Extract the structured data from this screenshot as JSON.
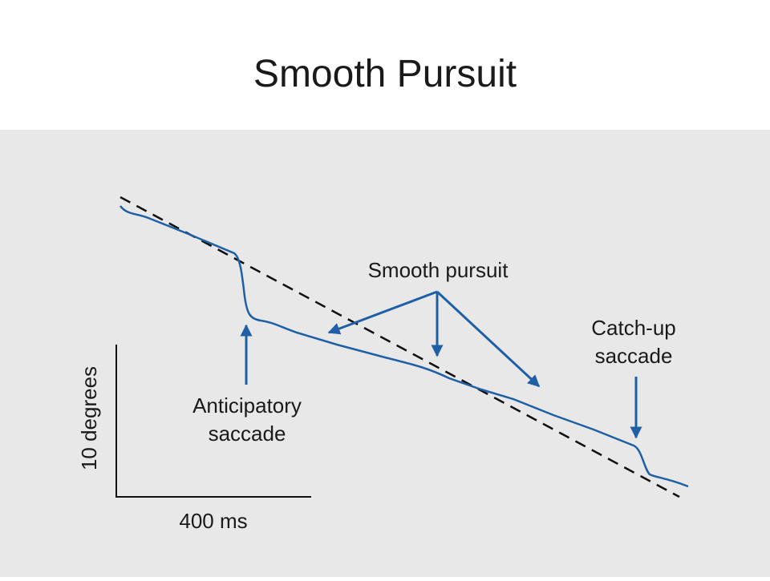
{
  "title": "Smooth Pursuit",
  "smooth_pursuit_label": "Smooth pursuit",
  "anticipatory_label": [
    "Anticipatory",
    "saccade"
  ],
  "catch_up_label": [
    "Catch-up",
    "saccade"
  ],
  "scale_bar": {
    "y_label": "10 degrees",
    "x_label": "400 ms"
  }
}
